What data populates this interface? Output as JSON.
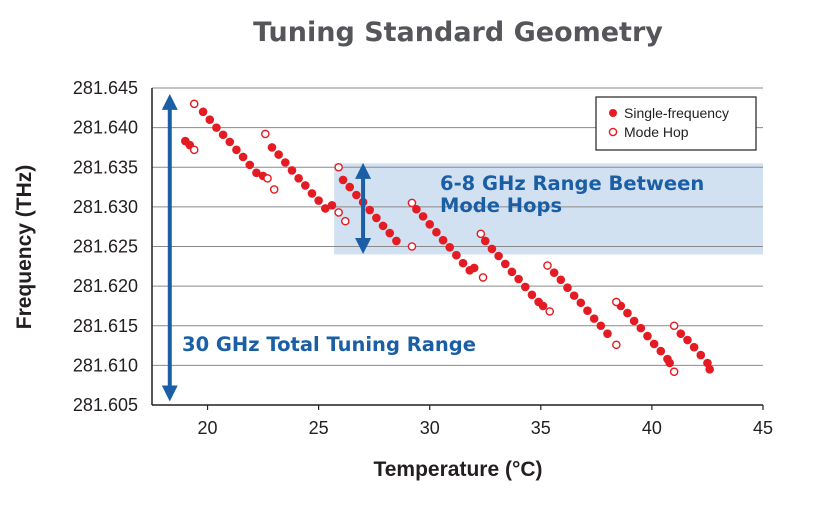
{
  "chart_data": {
    "type": "scatter",
    "title": "Tuning Standard Geometry",
    "xlabel": "Temperature (°C)",
    "ylabel": "Frequency (THz)",
    "xlim": [
      17.5,
      45
    ],
    "ylim": [
      281.605,
      281.645
    ],
    "x_ticks": [
      20,
      25,
      30,
      35,
      40,
      45
    ],
    "x_tick_labels": [
      "20",
      "25",
      "30",
      "35",
      "40",
      "45"
    ],
    "y_ticks": [
      281.605,
      281.61,
      281.615,
      281.62,
      281.625,
      281.63,
      281.635,
      281.64,
      281.645
    ],
    "y_tick_labels": [
      "281.605",
      "281.610",
      "281.615",
      "281.620",
      "281.625",
      "281.630",
      "281.635",
      "281.640",
      "281.645"
    ],
    "grid": "horizontal",
    "legend_position": "top-right",
    "series": [
      {
        "name": "Single-frequency",
        "marker": "filled-circle",
        "color": "#e41b23",
        "points": [
          [
            19.0,
            281.6383
          ],
          [
            19.2,
            281.6378
          ],
          [
            19.8,
            281.642
          ],
          [
            20.1,
            281.641
          ],
          [
            20.4,
            281.64
          ],
          [
            20.7,
            281.6391
          ],
          [
            21.0,
            281.6382
          ],
          [
            21.3,
            281.6372
          ],
          [
            21.6,
            281.6363
          ],
          [
            21.9,
            281.6353
          ],
          [
            22.2,
            281.6343
          ],
          [
            22.5,
            281.6339
          ],
          [
            22.9,
            281.6375
          ],
          [
            23.2,
            281.6366
          ],
          [
            23.5,
            281.6356
          ],
          [
            23.8,
            281.6346
          ],
          [
            24.1,
            281.6336
          ],
          [
            24.4,
            281.6327
          ],
          [
            24.7,
            281.6317
          ],
          [
            25.0,
            281.6308
          ],
          [
            25.3,
            281.6298
          ],
          [
            25.6,
            281.6302
          ],
          [
            26.1,
            281.6334
          ],
          [
            26.4,
            281.6325
          ],
          [
            26.7,
            281.6315
          ],
          [
            27.0,
            281.6306
          ],
          [
            27.3,
            281.6296
          ],
          [
            27.6,
            281.6286
          ],
          [
            27.9,
            281.6276
          ],
          [
            28.2,
            281.6267
          ],
          [
            28.5,
            281.6257
          ],
          [
            29.4,
            281.6297
          ],
          [
            29.7,
            281.6288
          ],
          [
            30.0,
            281.6278
          ],
          [
            30.3,
            281.6268
          ],
          [
            30.6,
            281.6258
          ],
          [
            30.9,
            281.6249
          ],
          [
            31.2,
            281.6239
          ],
          [
            31.5,
            281.6229
          ],
          [
            31.8,
            281.622
          ],
          [
            32.0,
            281.6223
          ],
          [
            32.5,
            281.6257
          ],
          [
            32.8,
            281.6247
          ],
          [
            33.1,
            281.6238
          ],
          [
            33.4,
            281.6228
          ],
          [
            33.7,
            281.6218
          ],
          [
            34.0,
            281.6209
          ],
          [
            34.3,
            281.6199
          ],
          [
            34.6,
            281.6189
          ],
          [
            34.9,
            281.618
          ],
          [
            35.1,
            281.6175
          ],
          [
            35.6,
            281.6217
          ],
          [
            35.9,
            281.6208
          ],
          [
            36.2,
            281.6198
          ],
          [
            36.5,
            281.6188
          ],
          [
            36.8,
            281.6179
          ],
          [
            37.1,
            281.6169
          ],
          [
            37.4,
            281.6159
          ],
          [
            37.7,
            281.615
          ],
          [
            38.0,
            281.614
          ],
          [
            38.6,
            281.6175
          ],
          [
            38.9,
            281.6166
          ],
          [
            39.2,
            281.6156
          ],
          [
            39.5,
            281.6147
          ],
          [
            39.8,
            281.6137
          ],
          [
            40.1,
            281.6127
          ],
          [
            40.4,
            281.6118
          ],
          [
            40.7,
            281.6108
          ],
          [
            40.8,
            281.6103
          ],
          [
            41.3,
            281.614
          ],
          [
            41.6,
            281.6132
          ],
          [
            41.9,
            281.6123
          ],
          [
            42.2,
            281.6113
          ],
          [
            42.5,
            281.6103
          ],
          [
            42.6,
            281.6095
          ]
        ]
      },
      {
        "name": "Mode Hop",
        "marker": "open-circle",
        "color": "#e41b23",
        "points": [
          [
            19.4,
            281.643
          ],
          [
            19.4,
            281.6372
          ],
          [
            22.6,
            281.6392
          ],
          [
            22.7,
            281.6336
          ],
          [
            23.0,
            281.6322
          ],
          [
            25.9,
            281.635
          ],
          [
            25.9,
            281.6293
          ],
          [
            26.2,
            281.6282
          ],
          [
            29.2,
            281.6305
          ],
          [
            29.2,
            281.625
          ],
          [
            32.3,
            281.6266
          ],
          [
            32.4,
            281.6211
          ],
          [
            35.3,
            281.6226
          ],
          [
            35.4,
            281.6168
          ],
          [
            38.4,
            281.618
          ],
          [
            38.4,
            281.6126
          ],
          [
            41.0,
            281.615
          ],
          [
            41.0,
            281.6092
          ]
        ]
      }
    ],
    "annotations": [
      {
        "text_lines": [
          "6-8 GHz Range Between",
          "Mode Hops"
        ],
        "shaded_x_range": [
          25.7,
          45
        ],
        "shaded_y_range": [
          281.624,
          281.6355
        ],
        "arrow_x": 27.0,
        "arrow_y_range": [
          281.6243,
          281.6353
        ]
      },
      {
        "text_lines": [
          "30 GHz Total Tuning Range"
        ],
        "arrow_x": 18.3,
        "arrow_y_range": [
          281.6057,
          281.644
        ]
      }
    ]
  }
}
